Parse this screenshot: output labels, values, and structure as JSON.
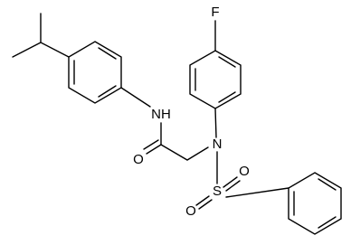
{
  "atoms": {
    "fluorine": "F",
    "amide_nh": "NH",
    "carbonyl_o": "O",
    "amine_n": "N",
    "sulfur": "S",
    "sulfonyl_o_top": "O",
    "sulfonyl_o_bottom": "O"
  }
}
